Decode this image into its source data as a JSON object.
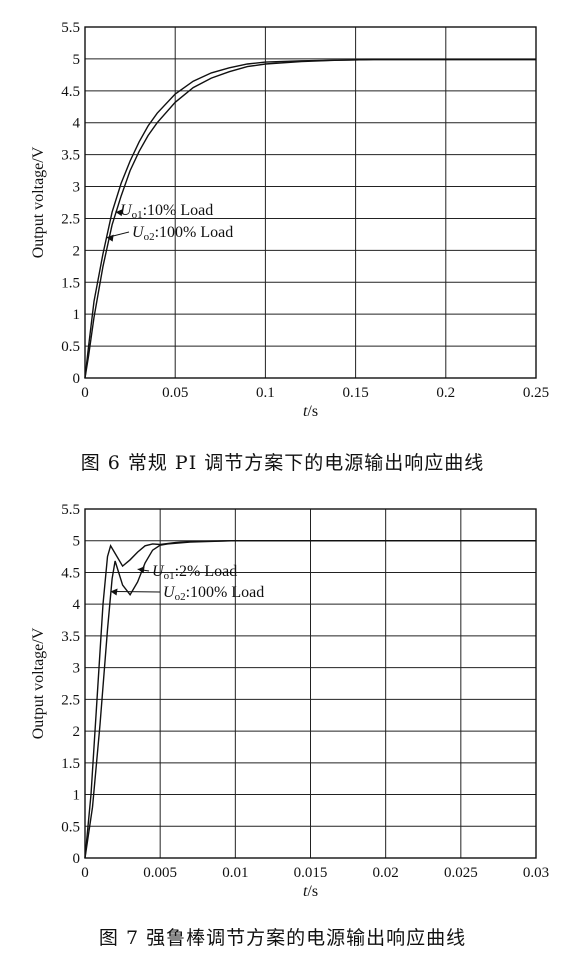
{
  "figures": [
    {
      "caption": "图 6    常规 PI 调节方案下的电源输出响应曲线",
      "chart_data": {
        "type": "line",
        "xlabel": "t/s",
        "ylabel": "Output voltage/V",
        "xlim": [
          0,
          0.25
        ],
        "ylim": [
          0,
          5.5
        ],
        "xticks": [
          0,
          0.05,
          0.1,
          0.15,
          0.2,
          0.25
        ],
        "xtick_labels": [
          "0",
          "0.05",
          "0.1",
          "0.15",
          "0.2",
          "0.25"
        ],
        "yticks": [
          0,
          0.5,
          1,
          1.5,
          2,
          2.5,
          3,
          3.5,
          4,
          4.5,
          5,
          5.5
        ],
        "ytick_labels": [
          "0",
          "0.5",
          "1",
          "1.5",
          "2",
          "2.5",
          "3",
          "3.5",
          "4",
          "4.5",
          "5",
          "5.5"
        ],
        "grid": true,
        "series": [
          {
            "name": "Uo1:10% Load",
            "x": [
              0,
              0.002,
              0.005,
              0.01,
              0.015,
              0.02,
              0.025,
              0.03,
              0.035,
              0.04,
              0.05,
              0.06,
              0.07,
              0.08,
              0.09,
              0.1,
              0.12,
              0.14,
              0.16,
              0.2,
              0.25
            ],
            "y": [
              0,
              0.5,
              1.2,
              1.95,
              2.6,
              3.05,
              3.4,
              3.7,
              3.95,
              4.15,
              4.45,
              4.65,
              4.78,
              4.86,
              4.92,
              4.95,
              4.97,
              4.98,
              4.99,
              4.99,
              4.99
            ]
          },
          {
            "name": "Uo2:100% Load",
            "x": [
              0,
              0.002,
              0.005,
              0.01,
              0.015,
              0.02,
              0.025,
              0.03,
              0.035,
              0.04,
              0.05,
              0.06,
              0.07,
              0.08,
              0.09,
              0.1,
              0.12,
              0.14,
              0.16,
              0.2,
              0.25
            ],
            "y": [
              0,
              0.35,
              0.95,
              1.75,
              2.4,
              2.85,
              3.25,
              3.55,
              3.8,
              4.0,
              4.32,
              4.55,
              4.7,
              4.8,
              4.88,
              4.92,
              4.96,
              4.98,
              4.99,
              4.99,
              4.99
            ]
          }
        ],
        "annotations": [
          "Uo1:10% Load",
          "Uo2:100% Load"
        ]
      }
    },
    {
      "caption": "图 7    强鲁棒调节方案的电源输出响应曲线",
      "chart_data": {
        "type": "line",
        "xlabel": "t/s",
        "ylabel": "Output voltage/V",
        "xlim": [
          0,
          0.03
        ],
        "ylim": [
          0,
          5.5
        ],
        "xticks": [
          0,
          0.005,
          0.01,
          0.015,
          0.02,
          0.025,
          0.03
        ],
        "xtick_labels": [
          "0",
          "0.005",
          "0.01",
          "0.015",
          "0.02",
          "0.025",
          "0.03"
        ],
        "yticks": [
          0,
          0.5,
          1,
          1.5,
          2,
          2.5,
          3,
          3.5,
          4,
          4.5,
          5,
          5.5
        ],
        "ytick_labels": [
          "0",
          "0.5",
          "1",
          "1.5",
          "2",
          "2.5",
          "3",
          "3.5",
          "4",
          "4.5",
          "5",
          "5.5"
        ],
        "grid": true,
        "series": [
          {
            "name": "Uo1:2% Load",
            "x": [
              0,
              0.0004,
              0.0008,
              0.0012,
              0.0015,
              0.0017,
              0.002,
              0.0025,
              0.003,
              0.0035,
              0.004,
              0.0045,
              0.005,
              0.006,
              0.007,
              0.01,
              0.03
            ],
            "y": [
              0,
              1.0,
              2.5,
              4.0,
              4.75,
              4.92,
              4.8,
              4.6,
              4.7,
              4.82,
              4.92,
              4.95,
              4.94,
              4.97,
              4.99,
              5.0,
              5.0
            ]
          },
          {
            "name": "Uo2:100% Load",
            "x": [
              0,
              0.0005,
              0.001,
              0.0015,
              0.0018,
              0.002,
              0.0025,
              0.003,
              0.0035,
              0.004,
              0.0045,
              0.005,
              0.0055,
              0.006,
              0.007,
              0.01,
              0.03
            ],
            "y": [
              0,
              0.8,
              2.1,
              3.6,
              4.4,
              4.68,
              4.3,
              4.15,
              4.35,
              4.65,
              4.85,
              4.93,
              4.95,
              4.96,
              4.98,
              5.0,
              5.0
            ]
          }
        ],
        "annotations": [
          "Uo1:2% Load",
          "Uo2:100% Load"
        ]
      }
    }
  ]
}
